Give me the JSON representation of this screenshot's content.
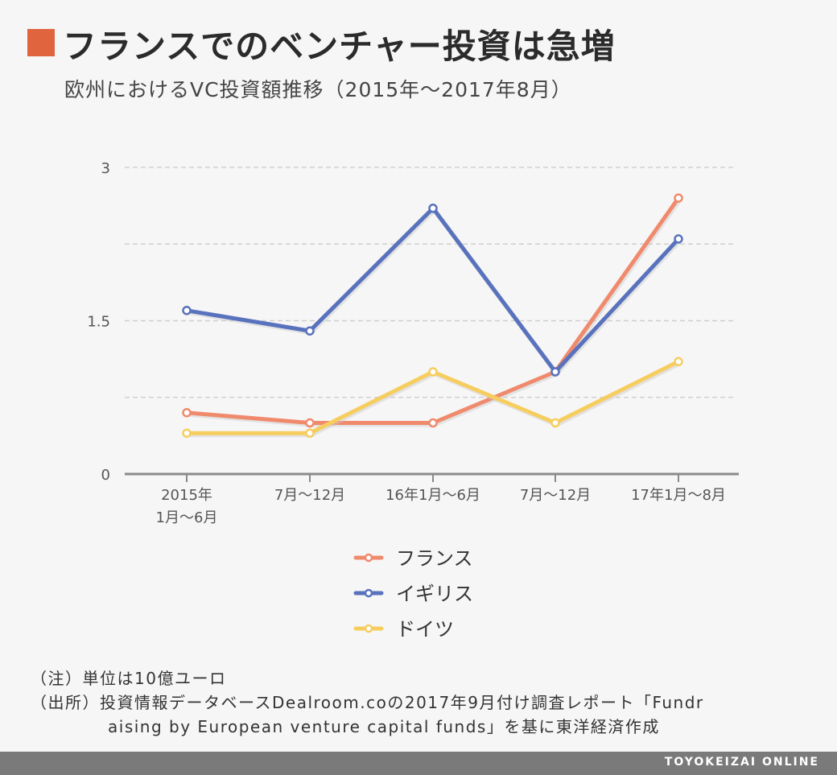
{
  "header": {
    "title": "フランスでのベンチャー投資は急増",
    "subtitle": "欧州におけるVC投資額推移（2015年〜2017年8月）"
  },
  "colors": {
    "accent": "#e0653f",
    "france": "#f08a6c",
    "uk": "#5872bd",
    "germany": "#f6cd5e"
  },
  "chart_data": {
    "type": "line",
    "categories": [
      [
        "2015年",
        "1月〜6月"
      ],
      [
        "7月〜12月"
      ],
      [
        "16年1月〜6月"
      ],
      [
        "7月〜12月"
      ],
      [
        "17年1月〜8月"
      ]
    ],
    "y_tick_labels": [
      "0",
      "1.5",
      "3"
    ],
    "ylim": [
      0,
      3
    ],
    "grid": true,
    "legend": "bottom",
    "series": [
      {
        "name": "フランス",
        "color": "#f08a6c",
        "values": [
          0.6,
          0.5,
          0.5,
          1.0,
          2.7
        ]
      },
      {
        "name": "イギリス",
        "color": "#5872bd",
        "values": [
          1.6,
          1.4,
          2.6,
          1.0,
          2.3
        ]
      },
      {
        "name": "ドイツ",
        "color": "#f6cd5e",
        "values": [
          0.4,
          0.4,
          1.0,
          0.5,
          1.1
        ]
      }
    ]
  },
  "notes": {
    "unit_note": "（注）単位は10億ユーロ",
    "source_line1": "（出所）投資情報データベースDealroom.coの2017年9月付け調査レポート「Fundr",
    "source_line2": "aising by European venture capital funds」を基に東洋経済作成"
  },
  "footer": {
    "brand": "TOYOKEIZAI ONLINE"
  }
}
